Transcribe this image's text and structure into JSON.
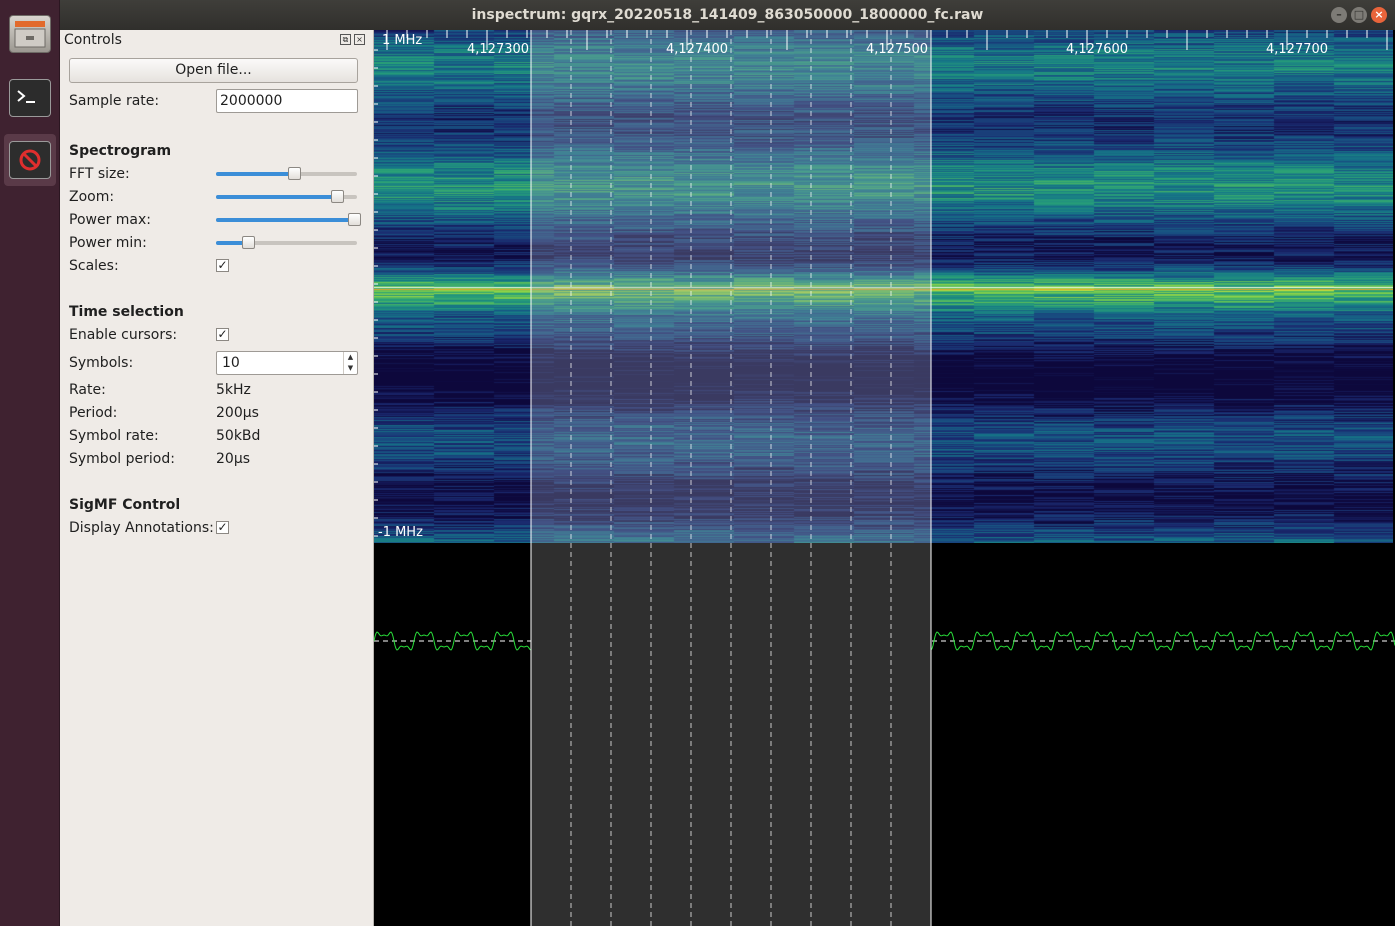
{
  "window": {
    "title": "inspectrum: gqrx_20220518_141409_863050000_1800000_fc.raw",
    "buttons": {
      "minimize": "–",
      "maximize": "□",
      "close": "×"
    }
  },
  "dock": {
    "items": [
      {
        "name": "files",
        "icon": "file-cabinet-icon",
        "active": false
      },
      {
        "name": "terminal",
        "icon": "terminal-icon",
        "active": false
      },
      {
        "name": "inspectrum",
        "icon": "no-entry-icon",
        "active": true
      }
    ]
  },
  "controls": {
    "title": "Controls",
    "float_icon": "⧉",
    "close_icon": "×",
    "open_file": "Open file...",
    "sample_rate_label": "Sample rate:",
    "sample_rate_value": "2000000",
    "spectrogram": {
      "heading": "Spectrogram",
      "fft_size_label": "FFT size:",
      "fft_size_level": 0.55,
      "zoom_label": "Zoom:",
      "zoom_level": 0.86,
      "power_max_label": "Power max:",
      "power_max_level": 0.98,
      "power_min_label": "Power min:",
      "power_min_level": 0.23,
      "scales_label": "Scales:",
      "scales_checked": "✓"
    },
    "time_selection": {
      "heading": "Time selection",
      "enable_cursors_label": "Enable cursors:",
      "enable_cursors_checked": "✓",
      "symbols_label": "Symbols:",
      "symbols_value": "10",
      "spin_up": "▲",
      "spin_down": "▼",
      "rate_label": "Rate:",
      "rate_value": "5kHz",
      "period_label": "Period:",
      "period_value": "200µs",
      "symbol_rate_label": "Symbol rate:",
      "symbol_rate_value": "50kBd",
      "symbol_period_label": "Symbol period:",
      "symbol_period_value": "20µs"
    },
    "sigmf": {
      "heading": "SigMF Control",
      "display_annotations_label": "Display Annotations:",
      "display_annotations_checked": "✓"
    }
  },
  "spectrogram_view": {
    "top_label": "1 MHz",
    "bottom_label": "-1 MHz",
    "sample_ticks": [
      "4,127300",
      "4,127400",
      "4,127500",
      "4,127600",
      "4,127700"
    ],
    "selection_symbols": 10,
    "colors": {
      "selection_overlay": "#9aa6b2",
      "trace": "#29e03a",
      "baseline": "#ffffff"
    }
  }
}
